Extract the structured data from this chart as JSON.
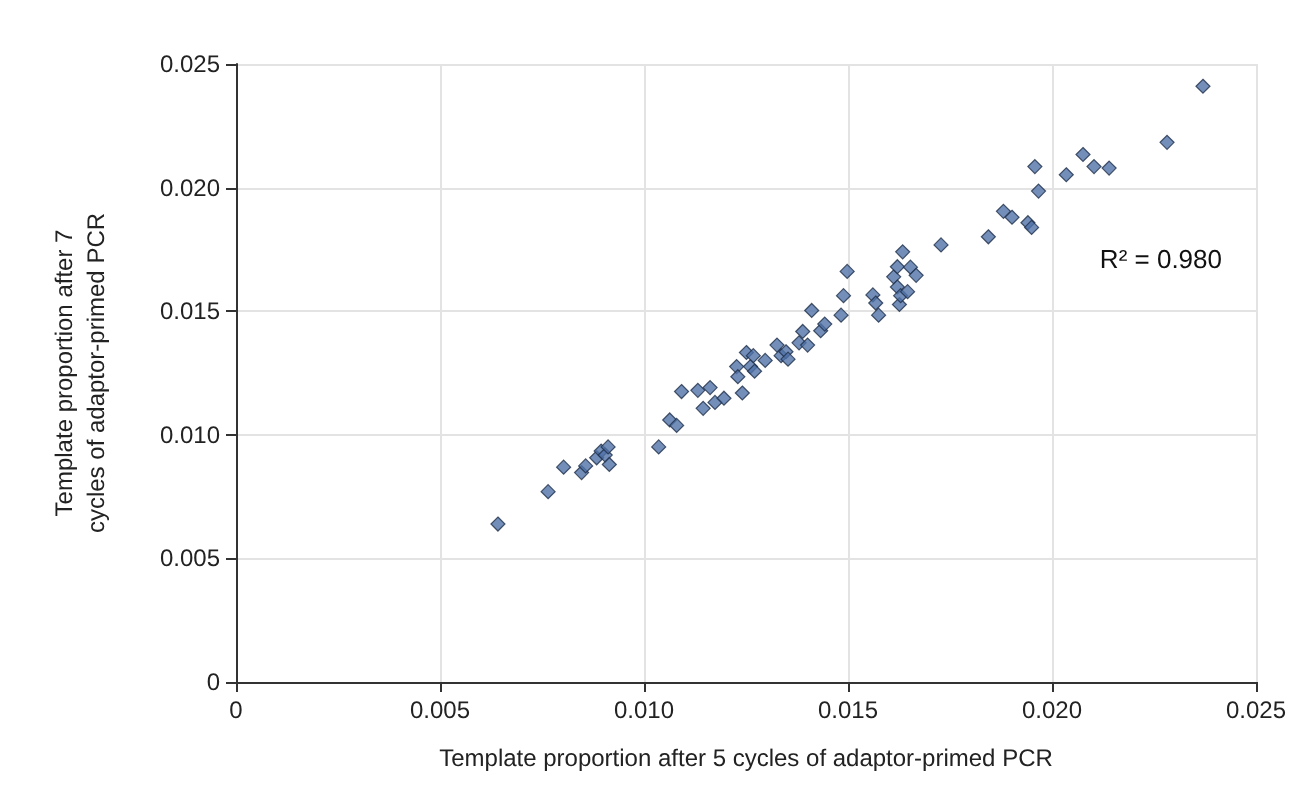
{
  "chart_data": {
    "type": "scatter",
    "xlabel": "Template proportion after 5 cycles of adaptor-primed PCR",
    "ylabel": "Template proportion after 7\ncycles of adaptor-primed PCR",
    "x": [
      0.00642,
      0.00765,
      0.00803,
      0.00847,
      0.00857,
      0.00884,
      0.00895,
      0.00905,
      0.00912,
      0.00915,
      0.01036,
      0.01063,
      0.0108,
      0.01092,
      0.01132,
      0.01145,
      0.01162,
      0.01174,
      0.01196,
      0.01227,
      0.0123,
      0.01241,
      0.01251,
      0.01261,
      0.01271,
      0.01297,
      0.01268,
      0.01326,
      0.01336,
      0.01348,
      0.01353,
      0.0138,
      0.01389,
      0.01401,
      0.01411,
      0.01433,
      0.01443,
      0.01483,
      0.01489,
      0.01498,
      0.01561,
      0.01568,
      0.01575,
      0.01612,
      0.01621,
      0.01634,
      0.01621,
      0.01626,
      0.01629,
      0.01646,
      0.01653,
      0.01667,
      0.01728,
      0.01844,
      0.01881,
      0.01902,
      0.01941,
      0.0195,
      0.01958,
      0.01967,
      0.02035,
      0.02076,
      0.02103,
      0.0214,
      0.02282,
      0.0237
    ],
    "series": [
      {
        "color": "#4f72a8",
        "values": [
          0.00639,
          0.0077,
          0.00869,
          0.00847,
          0.00874,
          0.00907,
          0.00934,
          0.00918,
          0.00951,
          0.0088,
          0.00951,
          0.0106,
          0.01038,
          0.01175,
          0.0118,
          0.01107,
          0.01191,
          0.01131,
          0.01148,
          0.01276,
          0.01235,
          0.01169,
          0.01333,
          0.01276,
          0.01257,
          0.01301,
          0.0132,
          0.01363,
          0.0132,
          0.01336,
          0.01306,
          0.01372,
          0.01418,
          0.01363,
          0.01503,
          0.01421,
          0.01448,
          0.01484,
          0.01563,
          0.01661,
          0.01566,
          0.01533,
          0.01484,
          0.01639,
          0.0168,
          0.0174,
          0.01598,
          0.01527,
          0.01563,
          0.01579,
          0.01678,
          0.01645,
          0.01768,
          0.01801,
          0.01904,
          0.0188,
          0.01858,
          0.01839,
          0.02085,
          0.01986,
          0.02052,
          0.02134,
          0.02085,
          0.02079,
          0.02183,
          0.0241
        ]
      }
    ],
    "xlim": [
      0,
      0.025
    ],
    "xticks": [
      0,
      0.005,
      {
        "value": 0.01,
        "label": "0.010"
      },
      0.015,
      {
        "value": 0.02,
        "label": "0.020"
      },
      0.025
    ],
    "ylim": [
      0,
      0.025
    ],
    "yticks": [
      0,
      0.005,
      {
        "value": 0.01,
        "label": "0.010"
      },
      0.015,
      {
        "value": 0.02,
        "label": "0.020"
      },
      0.025
    ],
    "annotations": [
      "R² = 0.980"
    ],
    "grid": true,
    "marker": "diamond"
  }
}
